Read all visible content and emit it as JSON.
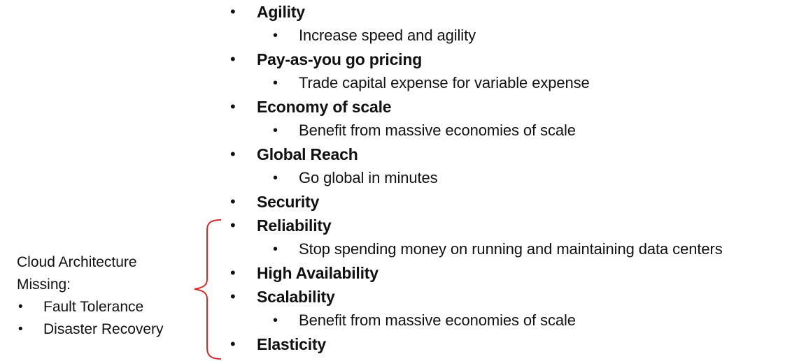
{
  "bullet_char": "•",
  "main_list": [
    {
      "level": 1,
      "text": "Agility"
    },
    {
      "level": 2,
      "text": "Increase speed and agility"
    },
    {
      "level": 1,
      "text": "Pay-as-you go pricing"
    },
    {
      "level": 2,
      "text": "Trade capital expense for variable expense"
    },
    {
      "level": 1,
      "text": "Economy of scale"
    },
    {
      "level": 2,
      "text": "Benefit from massive economies of scale"
    },
    {
      "level": 1,
      "text": "Global Reach"
    },
    {
      "level": 2,
      "text": "Go global in minutes"
    },
    {
      "level": 1,
      "text": "Security"
    },
    {
      "level": 1,
      "text": "Reliability"
    },
    {
      "level": 2,
      "text": "Stop spending money on running  and maintaining data centers"
    },
    {
      "level": 1,
      "text": "High Availability"
    },
    {
      "level": 1,
      "text": "Scalability"
    },
    {
      "level": 2,
      "text": "Benefit from massive economies of scale"
    },
    {
      "level": 1,
      "text": "Elasticity"
    }
  ],
  "side_note": {
    "title": "Cloud Architecture",
    "subtitle": "Missing:",
    "items": [
      "Fault Tolerance",
      "Disaster Recovery"
    ]
  },
  "colors": {
    "text": "#111111",
    "brace": "#d9262a",
    "background": "#ffffff"
  }
}
